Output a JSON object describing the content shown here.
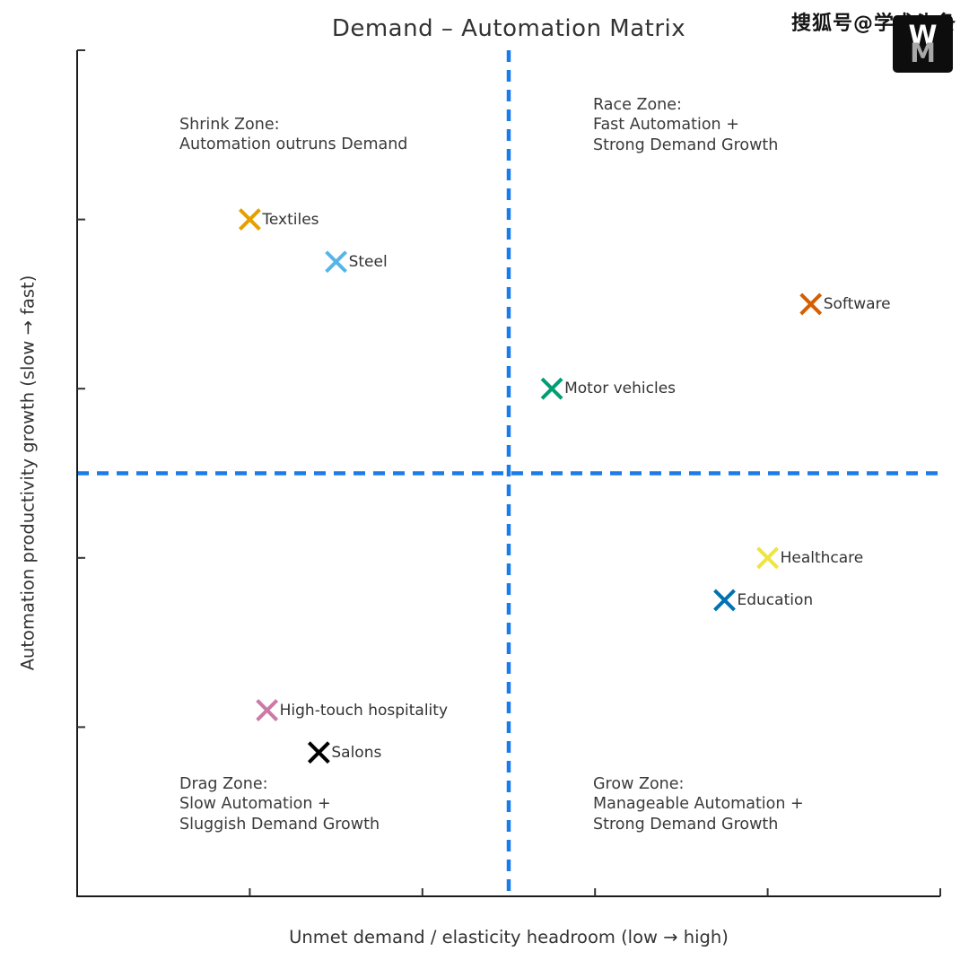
{
  "title": "Demand – Automation Matrix",
  "axes": {
    "xlabel": "Unmet demand / elasticity headroom (low → high)",
    "ylabel": "Automation productivity growth (slow → fast)"
  },
  "quadrants": [
    {
      "id": "shrink",
      "lines": [
        "Shrink Zone:",
        "Automation outruns Demand"
      ]
    },
    {
      "id": "race",
      "lines": [
        "Race Zone:",
        "Fast Automation +",
        "Strong Demand Growth"
      ]
    },
    {
      "id": "drag",
      "lines": [
        "Drag Zone:",
        "Slow Automation +",
        "Sluggish Demand Growth"
      ]
    },
    {
      "id": "grow",
      "lines": [
        "Grow Zone:",
        "Manageable Automation +",
        "Strong Demand Growth"
      ]
    }
  ],
  "watermark": {
    "text": "搜狐号@学术头条",
    "logo_top_letter": "W",
    "logo_bottom_letter": "M"
  },
  "colors": {
    "divider_blue": "#1a7ce8",
    "spine": "#1a1a1a",
    "text": "#333333"
  },
  "chart_data": {
    "type": "scatter",
    "title": "Demand – Automation Matrix",
    "xlabel": "Unmet demand / elasticity headroom (low → high)",
    "ylabel": "Automation productivity growth (slow → fast)",
    "xlim": [
      0,
      1
    ],
    "ylim": [
      0,
      1
    ],
    "xticks": [
      0.2,
      0.4,
      0.6,
      0.8,
      1.0
    ],
    "yticks": [
      0.2,
      0.4,
      0.6,
      0.8,
      1.0
    ],
    "tick_labels_shown": false,
    "grid": false,
    "legend": "none",
    "marker": "x",
    "reference_lines": {
      "x": 0.5,
      "y": 0.5,
      "style": "dashed",
      "color": "#1a7ce8"
    },
    "points": [
      {
        "label": "Textiles",
        "x": 0.2,
        "y": 0.8,
        "color": "#E69F00"
      },
      {
        "label": "Steel",
        "x": 0.3,
        "y": 0.75,
        "color": "#56B4E9"
      },
      {
        "label": "Software",
        "x": 0.85,
        "y": 0.7,
        "color": "#D55E00"
      },
      {
        "label": "Motor vehicles",
        "x": 0.55,
        "y": 0.6,
        "color": "#009E73"
      },
      {
        "label": "Healthcare",
        "x": 0.8,
        "y": 0.4,
        "color": "#F0E442"
      },
      {
        "label": "Education",
        "x": 0.75,
        "y": 0.35,
        "color": "#0072B2"
      },
      {
        "label": "High-touch hospitality",
        "x": 0.22,
        "y": 0.22,
        "color": "#CC79A7"
      },
      {
        "label": "Salons",
        "x": 0.28,
        "y": 0.17,
        "color": "#000000"
      }
    ]
  }
}
